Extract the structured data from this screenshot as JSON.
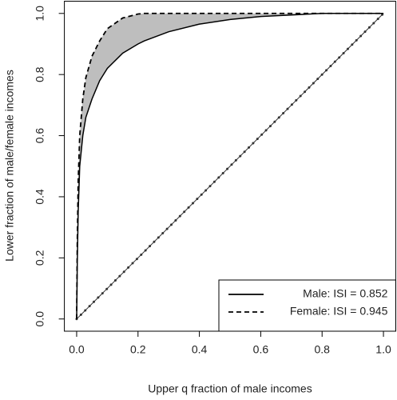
{
  "chart_data": {
    "type": "line",
    "x_label": "Upper q fraction of male incomes",
    "y_label": "Lower fraction of male/female incomes",
    "x": [
      0,
      0.002,
      0.005,
      0.01,
      0.02,
      0.03,
      0.05,
      0.075,
      0.1,
      0.15,
      0.2,
      0.22,
      0.3,
      0.4,
      0.5,
      0.6,
      0.8,
      1
    ],
    "series": [
      {
        "name": "Male: ISI = 0.852",
        "color": "#000000",
        "dash": "solid",
        "values": [
          0,
          0.18,
          0.35,
          0.5,
          0.6,
          0.66,
          0.72,
          0.78,
          0.82,
          0.87,
          0.9,
          0.91,
          0.94,
          0.965,
          0.98,
          0.99,
          1.0,
          1.0
        ]
      },
      {
        "name": "Female: ISI = 0.945",
        "color": "#000000",
        "dash": "dashed",
        "values": [
          0,
          0.25,
          0.45,
          0.6,
          0.72,
          0.79,
          0.86,
          0.91,
          0.95,
          0.985,
          0.998,
          1.0,
          1.0,
          1.0,
          1.0,
          1.0,
          1.0,
          1.0
        ]
      }
    ],
    "diagonal": {
      "x": [
        0,
        1
      ],
      "values": [
        0,
        1
      ]
    },
    "shade_color": "#bebebe",
    "xlim": [
      -0.04,
      1.04
    ],
    "ylim": [
      -0.04,
      1.04
    ],
    "xticks": [
      {
        "value": 0,
        "label": "0.0"
      },
      0.2,
      0.4,
      0.6,
      0.8,
      {
        "value": 1,
        "label": "1.0"
      }
    ],
    "yticks": [
      {
        "value": 0,
        "label": "0.0"
      },
      0.2,
      0.4,
      0.6,
      0.8,
      {
        "value": 1,
        "label": "1.0"
      }
    ],
    "legend": "bottom-right"
  }
}
